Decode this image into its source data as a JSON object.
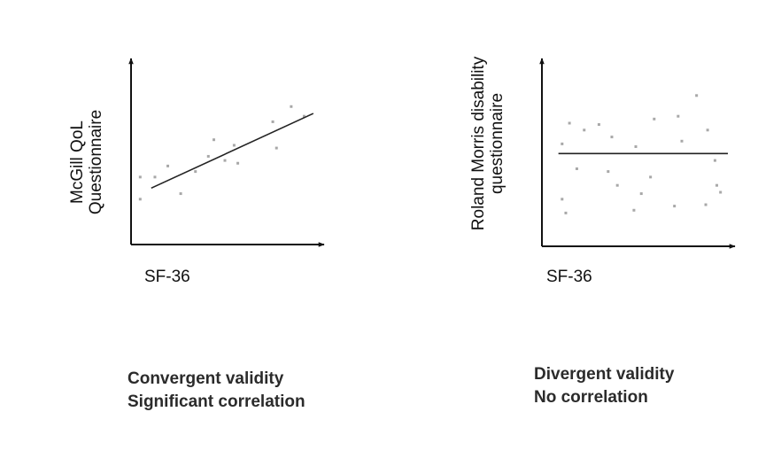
{
  "chart_data": [
    {
      "type": "scatter",
      "ylabel_lines": [
        "McGill QoL",
        "Questionnaire"
      ],
      "xlabel": "SF-36",
      "caption_lines": [
        "Convergent validity",
        "Significant correlation"
      ],
      "xlim": [
        0,
        100
      ],
      "ylim": [
        0,
        100
      ],
      "grid": false,
      "series": [
        {
          "x": [
            4,
            4,
            12,
            19,
            26,
            34,
            41,
            44,
            50,
            55,
            57,
            76,
            78,
            86,
            93
          ],
          "y": [
            20,
            36,
            36,
            44,
            24,
            40,
            51,
            63,
            48,
            59,
            46,
            76,
            57,
            87,
            80
          ]
        }
      ],
      "trendline": {
        "x": [
          10,
          98
        ],
        "y": [
          28,
          82
        ]
      }
    },
    {
      "type": "scatter",
      "ylabel_lines": [
        "Roland Morris disability",
        "questionnaire"
      ],
      "xlabel": "SF-36",
      "caption_lines": [
        "Divergent validity",
        "No correlation"
      ],
      "xlim": [
        0,
        100
      ],
      "ylim": [
        0,
        100
      ],
      "grid": false,
      "series": [
        {
          "x": [
            10,
            10,
            12,
            14,
            18,
            22,
            30,
            35,
            37,
            40,
            49,
            50,
            53,
            58,
            60,
            71,
            73,
            75,
            83,
            88,
            89,
            93,
            94,
            96
          ],
          "y": [
            20,
            60,
            10,
            75,
            42,
            70,
            74,
            40,
            65,
            30,
            12,
            58,
            24,
            36,
            78,
            15,
            80,
            62,
            95,
            16,
            70,
            48,
            30,
            25
          ]
        }
      ],
      "trendline": {
        "x": [
          8,
          100
        ],
        "y": [
          53,
          53
        ]
      }
    }
  ]
}
